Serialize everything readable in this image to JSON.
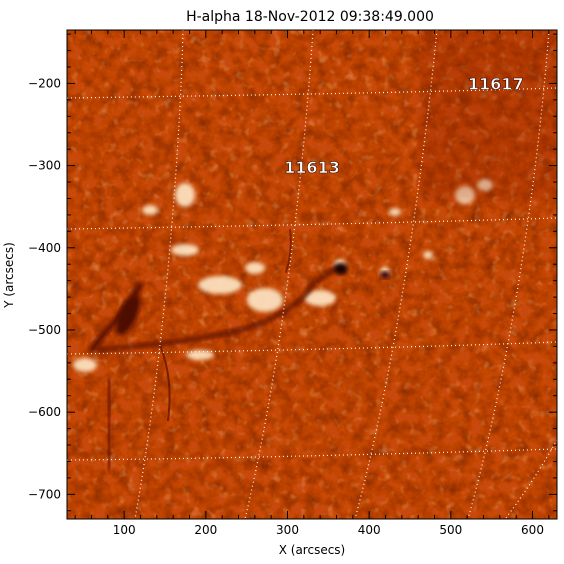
{
  "title": "H-alpha 18-Nov-2012 09:38:49.000",
  "x_axis": {
    "label": "X (arcsecs)",
    "range": [
      30,
      630
    ],
    "ticks": [
      {
        "value": 100,
        "label": "100"
      },
      {
        "value": 200,
        "label": "200"
      },
      {
        "value": 300,
        "label": "300"
      },
      {
        "value": 400,
        "label": "400"
      },
      {
        "value": 500,
        "label": "500"
      },
      {
        "value": 600,
        "label": "600"
      }
    ]
  },
  "y_axis": {
    "label": "Y (arcsecs)",
    "range": [
      -730,
      -135
    ],
    "ticks": [
      {
        "value": -200,
        "label": "−200"
      },
      {
        "value": -300,
        "label": "−300"
      },
      {
        "value": -400,
        "label": "−400"
      },
      {
        "value": -500,
        "label": "−500"
      },
      {
        "value": -600,
        "label": "−600"
      },
      {
        "value": -700,
        "label": "−700"
      }
    ]
  },
  "active_regions": [
    {
      "label": "11613",
      "x": 330,
      "y": -302
    },
    {
      "label": "11617",
      "x": 555,
      "y": -200
    }
  ],
  "colors": {
    "image_base": "#c84a10",
    "image_dark": "#8a1a04",
    "image_bright": "#ffe6c0",
    "grid": "#ffffff"
  }
}
